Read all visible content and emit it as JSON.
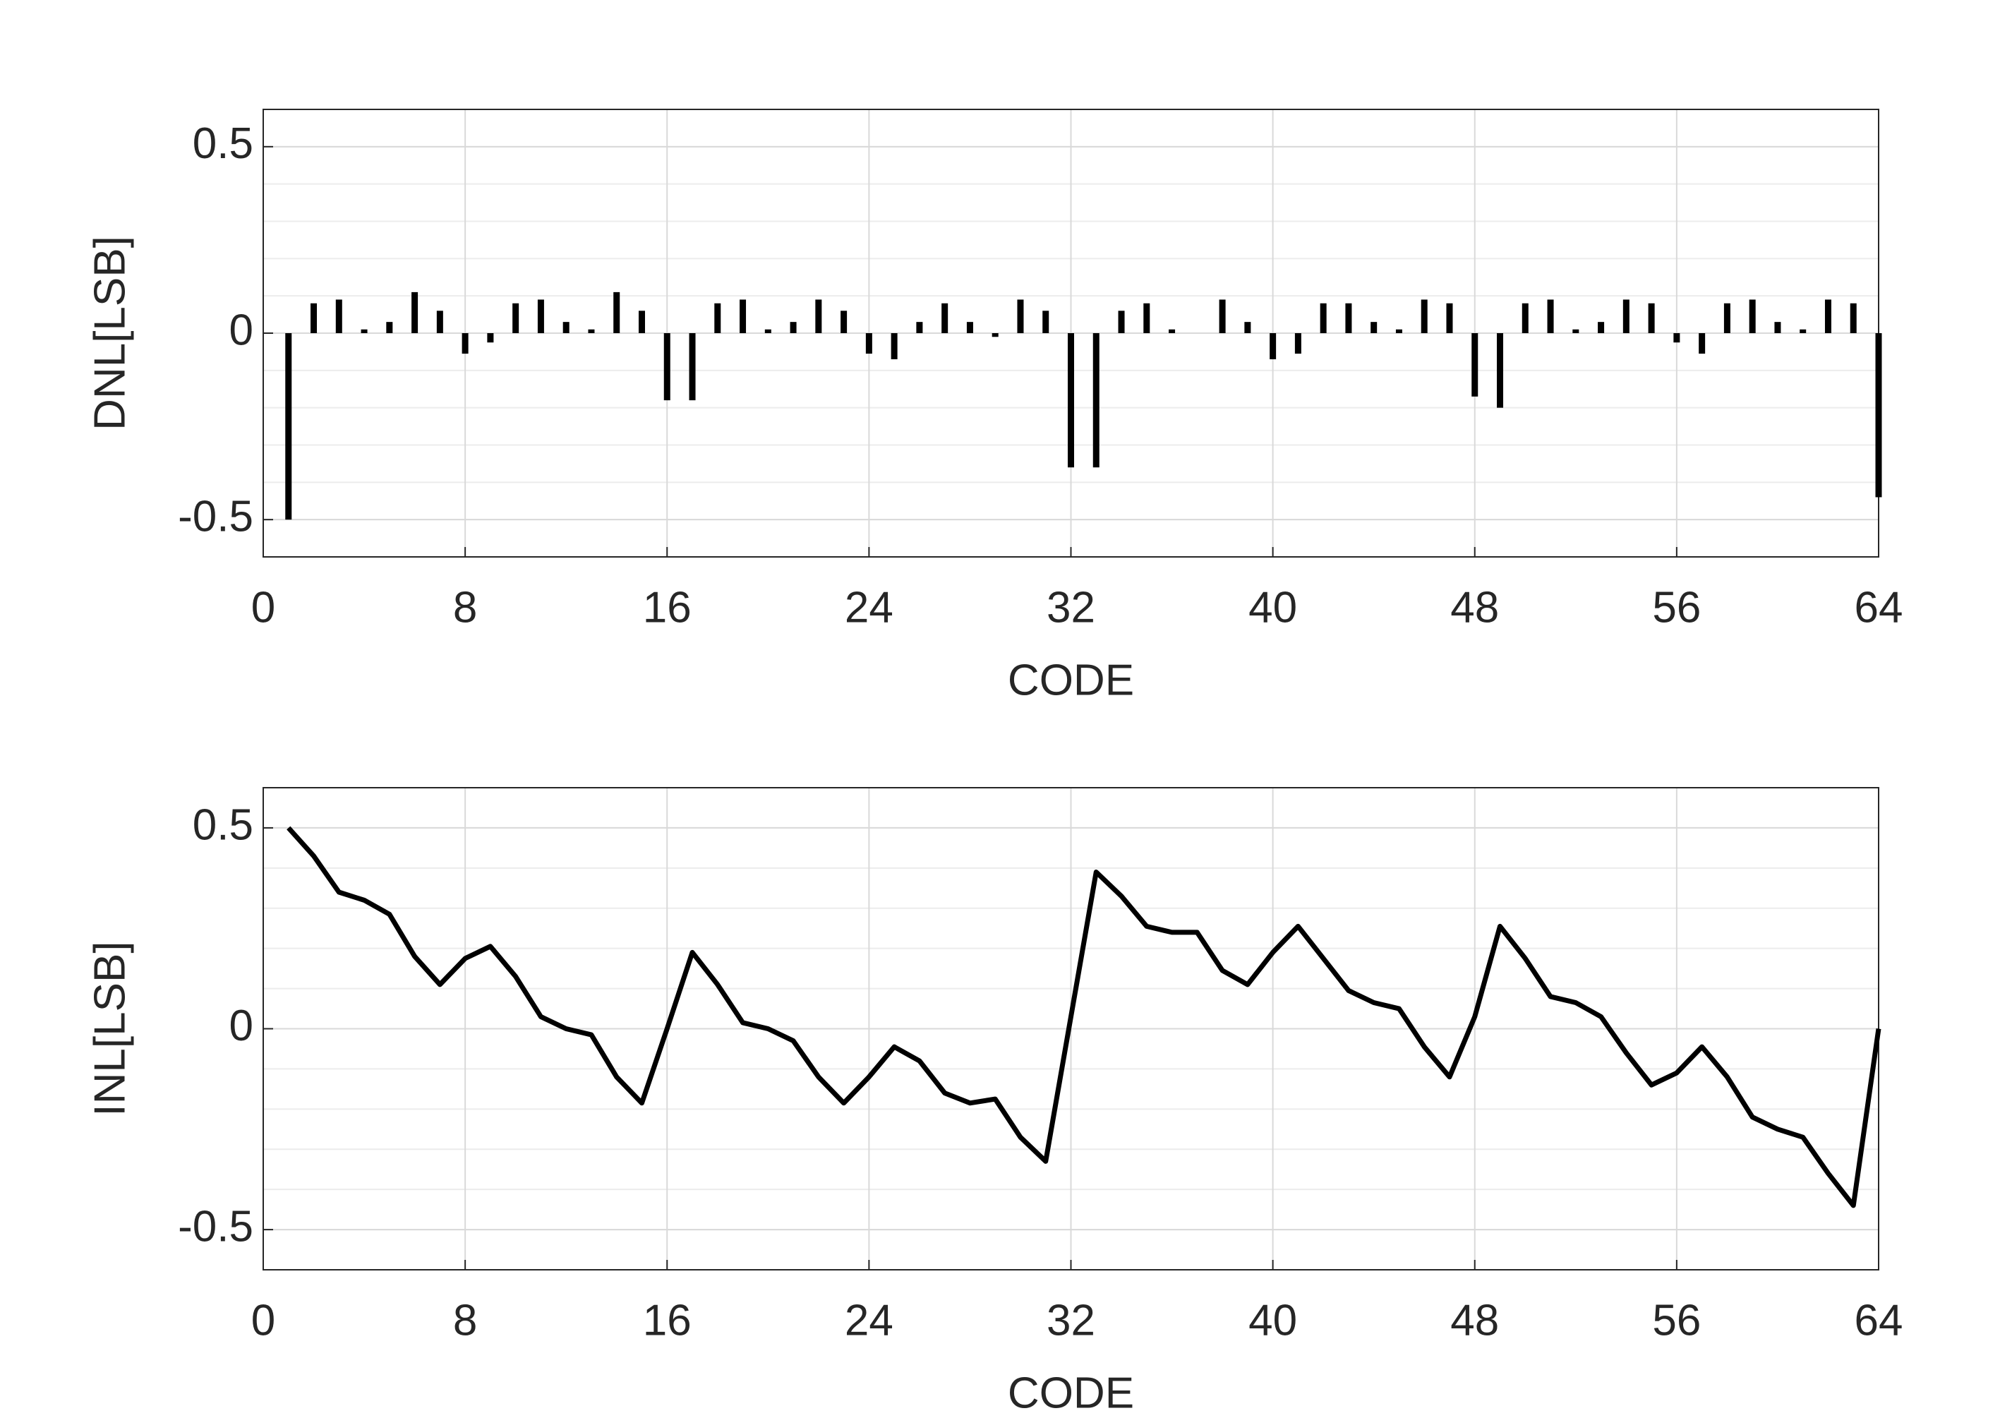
{
  "chart_data": [
    {
      "type": "bar",
      "xlabel": "CODE",
      "ylabel": "DNL[LSB]",
      "color": "#000000",
      "grid": true,
      "x": [
        1,
        2,
        3,
        4,
        5,
        6,
        7,
        8,
        9,
        10,
        11,
        12,
        13,
        14,
        15,
        16,
        17,
        18,
        19,
        20,
        21,
        22,
        23,
        24,
        25,
        26,
        27,
        28,
        29,
        30,
        31,
        32,
        33,
        34,
        35,
        36,
        37,
        38,
        39,
        40,
        41,
        42,
        43,
        44,
        45,
        46,
        47,
        48,
        49,
        50,
        51,
        52,
        53,
        54,
        55,
        56,
        57,
        58,
        59,
        60,
        61,
        62,
        63,
        64
      ],
      "values": [
        -0.5,
        0.08,
        0.09,
        0.01,
        0.03,
        0.11,
        0.06,
        -0.055,
        -0.025,
        0.08,
        0.09,
        0.03,
        0.01,
        0.11,
        0.06,
        -0.18,
        -0.18,
        0.08,
        0.09,
        0.01,
        0.03,
        0.09,
        0.06,
        -0.055,
        -0.07,
        0.03,
        0.08,
        0.03,
        -0.01,
        0.09,
        0.06,
        -0.36,
        -0.36,
        0.06,
        0.08,
        0.01,
        0,
        0.09,
        0.03,
        -0.07,
        -0.055,
        0.08,
        0.08,
        0.03,
        0.01,
        0.09,
        0.08,
        -0.17,
        -0.2,
        0.08,
        0.09,
        0.01,
        0.03,
        0.09,
        0.08,
        -0.025,
        -0.055,
        0.08,
        0.09,
        0.03,
        0.01,
        0.09,
        0.08,
        -0.44
      ],
      "xlim": [
        0,
        64
      ],
      "xticks": [
        0,
        8,
        16,
        24,
        32,
        40,
        48,
        56,
        64
      ],
      "ylim": [
        -0.6,
        0.6
      ],
      "yticks": [
        -0.5,
        0,
        0.5
      ],
      "minor_yticks": [
        -0.6,
        -0.5,
        -0.4,
        -0.3,
        -0.2,
        -0.1,
        0,
        0.1,
        0.2,
        0.3,
        0.4,
        0.5,
        0.6
      ]
    },
    {
      "type": "line",
      "xlabel": "CODE",
      "ylabel": "INL[LSB]",
      "color": "#000000",
      "grid": true,
      "x": [
        1,
        2,
        3,
        4,
        5,
        6,
        7,
        8,
        9,
        10,
        11,
        12,
        13,
        14,
        15,
        16,
        17,
        18,
        19,
        20,
        21,
        22,
        23,
        24,
        25,
        26,
        27,
        28,
        29,
        30,
        31,
        32,
        33,
        34,
        35,
        36,
        37,
        38,
        39,
        40,
        41,
        42,
        43,
        44,
        45,
        46,
        47,
        48,
        49,
        50,
        51,
        52,
        53,
        54,
        55,
        56,
        57,
        58,
        59,
        60,
        61,
        62,
        63,
        64
      ],
      "values": [
        0.5,
        0.43,
        0.34,
        0.32,
        0.285,
        0.18,
        0.11,
        0.175,
        0.205,
        0.13,
        0.03,
        0,
        -0.015,
        -0.12,
        -0.185,
        0,
        0.19,
        0.11,
        0.015,
        0,
        -0.03,
        -0.12,
        -0.185,
        -0.12,
        -0.045,
        -0.08,
        -0.16,
        -0.185,
        -0.175,
        -0.27,
        -0.33,
        0.03,
        0.39,
        0.33,
        0.255,
        0.24,
        0.24,
        0.145,
        0.11,
        0.19,
        0.255,
        0.175,
        0.095,
        0.065,
        0.05,
        -0.045,
        -0.12,
        0.03,
        0.255,
        0.175,
        0.08,
        0.065,
        0.03,
        -0.06,
        -0.14,
        -0.11,
        -0.045,
        -0.12,
        -0.22,
        -0.25,
        -0.27,
        -0.36,
        -0.44,
        0
      ],
      "xlim": [
        0,
        64
      ],
      "xticks": [
        0,
        8,
        16,
        24,
        32,
        40,
        48,
        56,
        64
      ],
      "ylim": [
        -0.6,
        0.6
      ],
      "yticks": [
        -0.5,
        0,
        0.5
      ],
      "minor_yticks": [
        -0.6,
        -0.5,
        -0.4,
        -0.3,
        -0.2,
        -0.1,
        0,
        0.1,
        0.2,
        0.3,
        0.4,
        0.5,
        0.6
      ]
    }
  ]
}
